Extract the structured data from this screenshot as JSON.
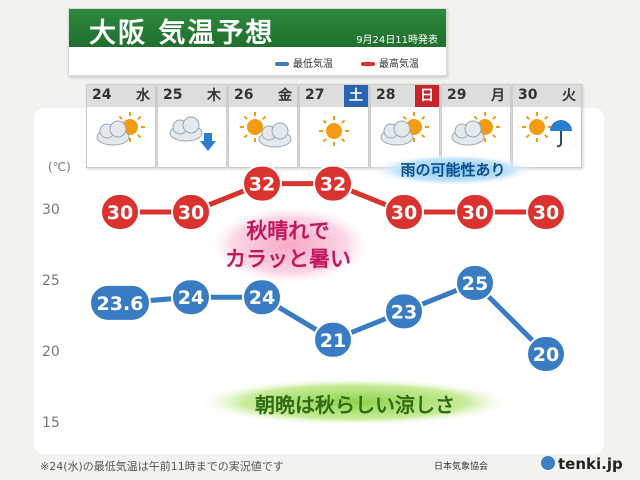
{
  "header": {
    "title": "大阪 気温予想",
    "issued": "9月24日11時発表",
    "legend_min": "最低気温",
    "legend_max": "最高気温",
    "color_min": "#3a7cc4",
    "color_max": "#d9322f",
    "color_title_bg": "#2e8a3e"
  },
  "days": [
    {
      "date": "24",
      "weekday": "水",
      "weather": "cloudy-sunny",
      "kind": "weekday"
    },
    {
      "date": "25",
      "weekday": "木",
      "weather": "cloudy-rain",
      "kind": "weekday"
    },
    {
      "date": "26",
      "weekday": "金",
      "weather": "sunny-cloudy",
      "kind": "weekday"
    },
    {
      "date": "27",
      "weekday": "土",
      "weather": "sunny",
      "kind": "sat"
    },
    {
      "date": "28",
      "weekday": "日",
      "weather": "cloudy-sunny",
      "kind": "sun"
    },
    {
      "date": "29",
      "weekday": "月",
      "weather": "cloudy-sunny",
      "kind": "weekday"
    },
    {
      "date": "30",
      "weekday": "火",
      "weather": "sunny-rain",
      "kind": "weekday"
    }
  ],
  "axis": {
    "unit": "(℃)",
    "ticks": [
      "30",
      "25",
      "20",
      "15"
    ]
  },
  "chart_data": {
    "type": "line",
    "x": [
      "24",
      "25",
      "26",
      "27",
      "28",
      "29",
      "30"
    ],
    "ylim": [
      15,
      32
    ],
    "grid": false,
    "legend": "top-right",
    "series": [
      {
        "name": "最高気温",
        "values": [
          30,
          30,
          32,
          32,
          30,
          30,
          30
        ],
        "labels": [
          "30",
          "30",
          "32",
          "32",
          "30",
          "30",
          "30"
        ]
      },
      {
        "name": "最低気温",
        "values": [
          23.6,
          24,
          24,
          21,
          23,
          25,
          20
        ],
        "labels": [
          "23.6",
          "24",
          "24",
          "21",
          "23",
          "25",
          "20"
        ]
      }
    ]
  },
  "callouts": {
    "rain": "雨の可能性あり",
    "autumn_line1": "秋晴れで",
    "autumn_line2": "カラッと暑い",
    "morning": "朝晩は秋らしい涼しさ"
  },
  "footer": {
    "note": "※24(水)の最低気温は午前11時までの実況値です",
    "credit": "日本気象協会",
    "brand": "tenki.jp"
  }
}
